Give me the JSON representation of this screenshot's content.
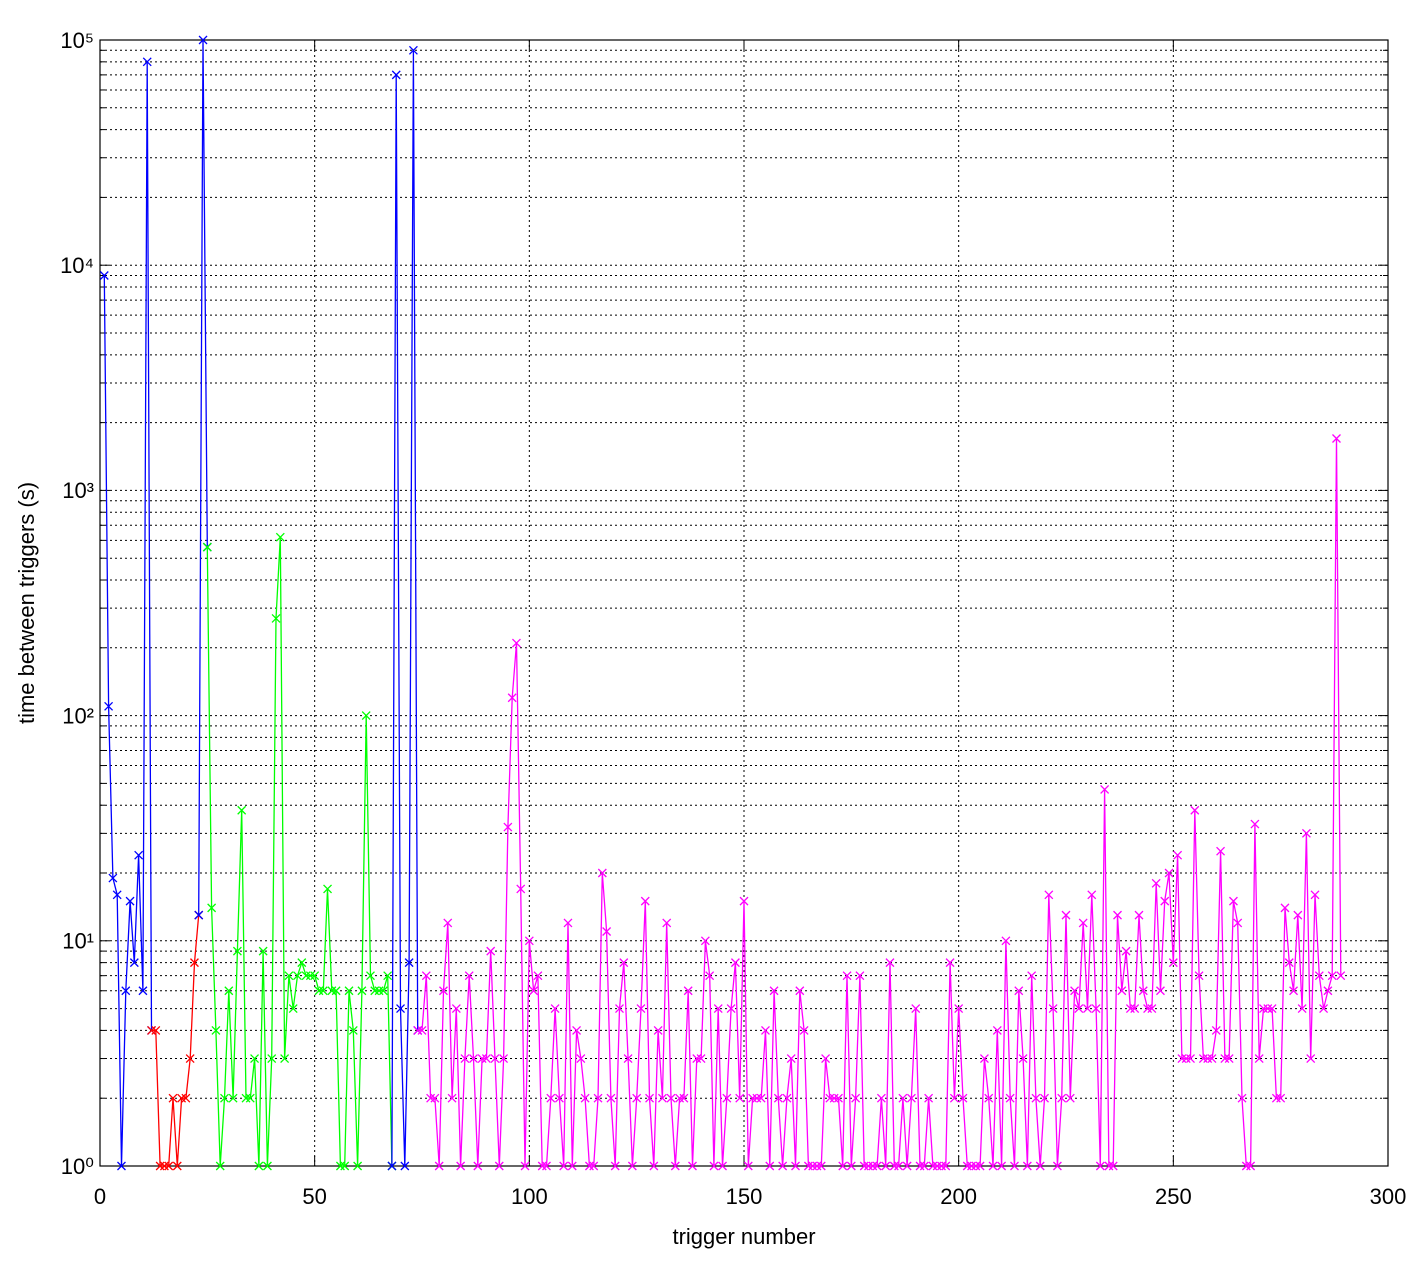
{
  "chart_data": {
    "type": "line",
    "xlabel": "trigger number",
    "ylabel": "time between triggers (s)",
    "xlim": [
      0,
      300
    ],
    "xticks": [
      0,
      50,
      100,
      150,
      200,
      250,
      300
    ],
    "ylim": [
      1,
      100000
    ],
    "yscale": "log",
    "yticks": [
      {
        "value": 1,
        "label": "10⁰"
      },
      {
        "value": 10,
        "label": "10¹"
      },
      {
        "value": 100,
        "label": "10²"
      },
      {
        "value": 1000,
        "label": "10³"
      },
      {
        "value": 10000,
        "label": "10⁴"
      },
      {
        "value": 100000,
        "label": "10⁵"
      }
    ],
    "yminorticks": [
      2,
      3,
      4,
      5,
      6,
      7,
      8,
      9,
      20,
      30,
      40,
      50,
      60,
      70,
      80,
      90,
      200,
      300,
      400,
      500,
      600,
      700,
      800,
      900,
      2000,
      3000,
      4000,
      5000,
      6000,
      7000,
      8000,
      9000,
      20000,
      30000,
      40000,
      50000,
      60000,
      70000,
      80000,
      90000
    ],
    "grid": true,
    "marker": "x",
    "series": [
      {
        "color": "#0000ff",
        "x": [
          1,
          2,
          3,
          4,
          5,
          6,
          7,
          8,
          9,
          10,
          11,
          12
        ],
        "values": [
          9000,
          110,
          19,
          16,
          1,
          6,
          15,
          8,
          24,
          6,
          80000,
          4
        ]
      },
      {
        "color": "#ff0000",
        "x": [
          12,
          13,
          14,
          15,
          16,
          17,
          18,
          19,
          20,
          21,
          22,
          23
        ],
        "values": [
          4,
          4,
          1,
          1,
          1,
          2,
          1,
          2,
          2,
          3,
          8,
          13
        ]
      },
      {
        "color": "#0000ff",
        "x": [
          23,
          24,
          25
        ],
        "values": [
          13,
          100000,
          560
        ]
      },
      {
        "color": "#00ff00",
        "x": [
          25,
          26,
          27,
          28,
          29,
          30,
          31,
          32,
          33,
          34,
          35,
          36,
          37,
          38,
          39,
          40,
          41,
          42,
          43,
          44,
          45,
          46,
          47,
          48,
          49,
          50,
          51,
          52,
          53,
          54,
          55,
          56,
          57,
          58,
          59,
          60,
          61,
          62,
          63,
          64,
          65,
          66,
          67,
          68
        ],
        "values": [
          560,
          14,
          4,
          1,
          2,
          6,
          2,
          9,
          38,
          2,
          2,
          3,
          1,
          9,
          1,
          3,
          270,
          620,
          3,
          7,
          5,
          7,
          8,
          7,
          7,
          7,
          6,
          6,
          17,
          6,
          6,
          1,
          1,
          6,
          4,
          1,
          6,
          100,
          7,
          6,
          6,
          6,
          7,
          1
        ]
      },
      {
        "color": "#0000ff",
        "x": [
          68,
          69,
          70,
          71,
          72,
          73,
          74
        ],
        "values": [
          1,
          70000,
          5,
          1,
          8,
          90000,
          4
        ]
      },
      {
        "color": "#ff00ff",
        "x": [
          74,
          75,
          76,
          77,
          78,
          79,
          80,
          81,
          82,
          83,
          84,
          85,
          86,
          87,
          88,
          89,
          90,
          91,
          92,
          93,
          94,
          95,
          96,
          97,
          98,
          99,
          100,
          101,
          102,
          103,
          104,
          105,
          106,
          107,
          108,
          109,
          110,
          111,
          112,
          113,
          114,
          115,
          116,
          117,
          118,
          119,
          120,
          121,
          122,
          123,
          124,
          125,
          126,
          127,
          128,
          129,
          130,
          131,
          132,
          133,
          134,
          135,
          136,
          137,
          138,
          139,
          140,
          141,
          142,
          143,
          144,
          145,
          146,
          147,
          148,
          149,
          150,
          151,
          152,
          153,
          154,
          155,
          156,
          157,
          158,
          159,
          160,
          161,
          162,
          163,
          164,
          165,
          166,
          167,
          168,
          169,
          170,
          171,
          172,
          173,
          174,
          175,
          176,
          177,
          178,
          179,
          180,
          181,
          182,
          183,
          184,
          185,
          186,
          187,
          188,
          189,
          190,
          191,
          192,
          193,
          194,
          195,
          196,
          197,
          198,
          199,
          200,
          201,
          202,
          203,
          204,
          205,
          206,
          207,
          208,
          209,
          210,
          211,
          212,
          213,
          214,
          215,
          216,
          217,
          218,
          219,
          220,
          221,
          222,
          223,
          224,
          225,
          226,
          227,
          228,
          229,
          230,
          231,
          232,
          233,
          234,
          235,
          236,
          237,
          238,
          239,
          240,
          241,
          242,
          243,
          244,
          245,
          246,
          247,
          248,
          249,
          250,
          251,
          252,
          253,
          254,
          255,
          256,
          257,
          258,
          259,
          260,
          261,
          262,
          263,
          264,
          265,
          266,
          267,
          268,
          269,
          270,
          271,
          272,
          273,
          274,
          275,
          276,
          277,
          278,
          279,
          280,
          281,
          282,
          283,
          284,
          285,
          286,
          287,
          288,
          289
        ],
        "values": [
          4,
          4,
          7,
          2,
          2,
          1,
          6,
          12,
          2,
          5,
          1,
          3,
          7,
          3,
          1,
          3,
          3,
          9,
          3,
          1,
          3,
          32,
          120,
          210,
          17,
          1,
          10,
          6,
          7,
          1,
          1,
          2,
          5,
          2,
          1,
          12,
          1,
          4,
          3,
          2,
          1,
          1,
          2,
          20,
          11,
          2,
          1,
          5,
          8,
          3,
          1,
          2,
          5,
          15,
          2,
          1,
          4,
          2,
          12,
          2,
          1,
          2,
          2,
          6,
          1,
          3,
          3,
          10,
          7,
          1,
          5,
          1,
          2,
          5,
          8,
          2,
          15,
          1,
          2,
          2,
          2,
          4,
          1,
          6,
          2,
          1,
          2,
          3,
          1,
          6,
          4,
          1,
          1,
          1,
          1,
          3,
          2,
          2,
          2,
          1,
          7,
          1,
          2,
          7,
          1,
          1,
          1,
          1,
          2,
          1,
          8,
          1,
          1,
          2,
          1,
          2,
          5,
          1,
          1,
          2,
          1,
          1,
          1,
          1,
          8,
          2,
          5,
          2,
          1,
          1,
          1,
          1,
          3,
          2,
          1,
          4,
          1,
          10,
          2,
          1,
          6,
          3,
          1,
          7,
          2,
          1,
          2,
          16,
          5,
          1,
          2,
          13,
          2,
          6,
          5,
          12,
          5,
          16,
          5,
          1,
          47,
          1,
          1,
          13,
          6,
          9,
          5,
          5,
          13,
          6,
          5,
          5,
          18,
          6,
          15,
          20,
          8,
          24,
          3,
          3,
          3,
          38,
          7,
          3,
          3,
          3,
          4,
          25,
          3,
          3,
          15,
          12,
          2,
          1,
          1,
          33,
          3,
          5,
          5,
          5,
          2,
          2,
          14,
          8,
          6,
          13,
          5,
          30,
          3,
          16,
          7,
          5,
          6,
          7,
          1700,
          7
        ]
      }
    ]
  }
}
